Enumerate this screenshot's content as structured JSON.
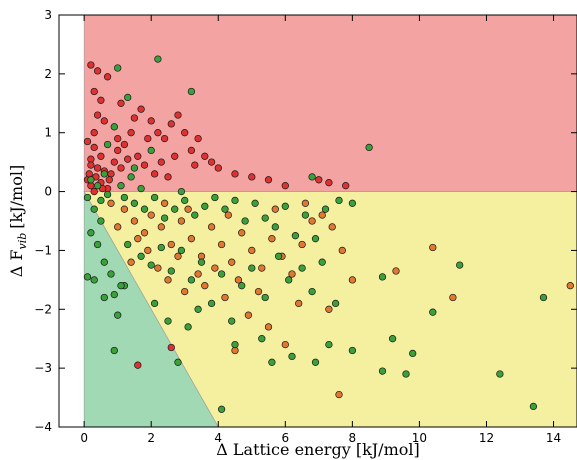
{
  "chart_data": {
    "type": "scatter",
    "title": "",
    "xlabel": "Δ Lattice energy [kJ/mol]",
    "ylabel": {
      "main": "Δ F",
      "sub": "vib",
      "unit": "[kJ/mol]"
    },
    "xlim": [
      -0.75,
      14.7
    ],
    "ylim": [
      -4,
      3
    ],
    "xticks": [
      0,
      2,
      4,
      6,
      8,
      10,
      12,
      14
    ],
    "yticks": [
      -4,
      -3,
      -2,
      -1,
      0,
      1,
      2,
      3
    ],
    "grid": false,
    "regions": [
      {
        "name": "red",
        "color": "#f4a3a3",
        "polygon": [
          [
            0,
            0
          ],
          [
            14.7,
            0
          ],
          [
            14.7,
            3
          ],
          [
            0,
            3
          ]
        ]
      },
      {
        "name": "yellow",
        "color": "#f5f0a0",
        "polygon": [
          [
            0,
            0
          ],
          [
            14.7,
            0
          ],
          [
            14.7,
            -4
          ],
          [
            4,
            -4
          ]
        ]
      },
      {
        "name": "green",
        "color": "#a0d9b4",
        "polygon": [
          [
            0,
            0
          ],
          [
            4,
            -4
          ],
          [
            0,
            -4
          ]
        ]
      }
    ],
    "series": [
      {
        "color": "#e03030",
        "points": [
          [
            0.2,
            2.15
          ],
          [
            0.4,
            2.05
          ],
          [
            0.3,
            1.7
          ],
          [
            0.5,
            1.55
          ],
          [
            0.4,
            1.3
          ],
          [
            0.6,
            1.2
          ],
          [
            0.3,
            1.0
          ],
          [
            0.1,
            0.85
          ],
          [
            0.3,
            0.75
          ],
          [
            0.5,
            0.6
          ],
          [
            0.2,
            0.55
          ],
          [
            0.4,
            0.4
          ],
          [
            0.6,
            0.35
          ],
          [
            0.8,
            0.3
          ],
          [
            0.9,
            0.5
          ],
          [
            1.0,
            0.7
          ],
          [
            1.2,
            0.8
          ],
          [
            1.4,
            1.0
          ],
          [
            1.5,
            1.25
          ],
          [
            1.7,
            1.4
          ],
          [
            2.0,
            1.2
          ],
          [
            2.2,
            1.0
          ],
          [
            2.4,
            0.9
          ],
          [
            2.6,
            1.15
          ],
          [
            2.8,
            1.3
          ],
          [
            3.0,
            1.0
          ],
          [
            3.2,
            0.7
          ],
          [
            3.4,
            0.9
          ],
          [
            3.6,
            0.6
          ],
          [
            3.8,
            0.5
          ],
          [
            4.0,
            0.4
          ],
          [
            4.5,
            0.3
          ],
          [
            5.0,
            0.25
          ],
          [
            5.5,
            0.2
          ],
          [
            6.0,
            0.1
          ],
          [
            7.0,
            0.2
          ],
          [
            7.3,
            0.15
          ],
          [
            7.8,
            0.1
          ],
          [
            1.1,
            0.4
          ],
          [
            1.3,
            0.55
          ],
          [
            1.6,
            0.6
          ],
          [
            1.8,
            0.45
          ],
          [
            2.1,
            0.3
          ],
          [
            2.3,
            0.5
          ],
          [
            2.5,
            0.25
          ],
          [
            0.1,
            0.2
          ],
          [
            0.2,
            0.1
          ],
          [
            0.3,
            0.0
          ],
          [
            0.5,
            0.15
          ],
          [
            0.7,
            0.05
          ],
          [
            1.0,
            0.9
          ],
          [
            1.1,
            1.5
          ],
          [
            0.7,
            1.95
          ],
          [
            0.2,
            0.45
          ],
          [
            0.15,
            0.3
          ],
          [
            0.35,
            0.25
          ],
          [
            0.55,
            0.05
          ],
          [
            0.75,
            0.2
          ],
          [
            1.9,
            0.9
          ],
          [
            2.7,
            0.6
          ],
          [
            3.3,
            0.45
          ],
          [
            1.6,
            -2.95
          ],
          [
            2.6,
            -2.65
          ]
        ]
      },
      {
        "color": "#e07830",
        "points": [
          [
            0.8,
            -0.2
          ],
          [
            1.2,
            -0.3
          ],
          [
            1.5,
            -0.5
          ],
          [
            1.8,
            -0.7
          ],
          [
            2.0,
            -0.4
          ],
          [
            2.3,
            -0.6
          ],
          [
            2.6,
            -0.9
          ],
          [
            2.9,
            -0.5
          ],
          [
            3.2,
            -0.8
          ],
          [
            3.5,
            -1.1
          ],
          [
            3.8,
            -0.6
          ],
          [
            4.1,
            -0.9
          ],
          [
            4.4,
            -1.2
          ],
          [
            4.7,
            -0.7
          ],
          [
            5.0,
            -1.0
          ],
          [
            5.3,
            -1.3
          ],
          [
            5.6,
            -0.8
          ],
          [
            5.9,
            -1.1
          ],
          [
            6.2,
            -1.4
          ],
          [
            6.5,
            -0.9
          ],
          [
            6.8,
            -0.5
          ],
          [
            7.1,
            -0.4
          ],
          [
            7.4,
            -0.6
          ],
          [
            7.7,
            -1.0
          ],
          [
            8.0,
            -1.5
          ],
          [
            9.3,
            -1.35
          ],
          [
            10.4,
            -0.95
          ],
          [
            11.0,
            -1.8
          ],
          [
            14.5,
            -1.6
          ],
          [
            4.9,
            -2.1
          ],
          [
            5.5,
            -2.3
          ],
          [
            6.0,
            -2.6
          ],
          [
            4.5,
            -2.7
          ],
          [
            7.6,
            -3.45
          ],
          [
            2.5,
            -1.5
          ],
          [
            3.0,
            -1.7
          ],
          [
            3.6,
            -1.6
          ],
          [
            4.2,
            -1.8
          ],
          [
            1.4,
            -1.2
          ],
          [
            1.9,
            -1.0
          ],
          [
            2.2,
            -1.3
          ],
          [
            2.8,
            -1.1
          ],
          [
            3.4,
            -1.4
          ],
          [
            3.9,
            -1.3
          ],
          [
            4.6,
            -1.5
          ],
          [
            5.2,
            -1.7
          ],
          [
            6.4,
            -1.9
          ],
          [
            7.3,
            -2.0
          ],
          [
            1.0,
            -0.6
          ],
          [
            1.6,
            -0.8
          ],
          [
            2.4,
            -0.2
          ],
          [
            3.1,
            -0.3
          ],
          [
            4.3,
            -0.4
          ],
          [
            5.7,
            -0.3
          ],
          [
            6.6,
            -0.2
          ]
        ]
      },
      {
        "color": "#3aa03a",
        "points": [
          [
            0.1,
            -0.1
          ],
          [
            0.3,
            -0.3
          ],
          [
            0.5,
            -0.5
          ],
          [
            0.2,
            -0.7
          ],
          [
            0.4,
            -0.9
          ],
          [
            0.6,
            -1.2
          ],
          [
            0.8,
            -1.4
          ],
          [
            0.3,
            -1.5
          ],
          [
            0.1,
            -1.45
          ],
          [
            0.6,
            -1.8
          ],
          [
            0.9,
            -1.75
          ],
          [
            1.2,
            -1.6
          ],
          [
            1.0,
            -2.1
          ],
          [
            1.1,
            -1.6
          ],
          [
            0.9,
            -2.7
          ],
          [
            2.8,
            -2.9
          ],
          [
            4.1,
            -3.7
          ],
          [
            4.5,
            -2.6
          ],
          [
            5.3,
            -2.5
          ],
          [
            5.6,
            -2.9
          ],
          [
            6.2,
            -2.8
          ],
          [
            6.9,
            -2.9
          ],
          [
            7.3,
            -2.6
          ],
          [
            8.0,
            -2.7
          ],
          [
            8.9,
            -3.05
          ],
          [
            9.2,
            -2.5
          ],
          [
            9.6,
            -3.1
          ],
          [
            9.8,
            -2.75
          ],
          [
            10.4,
            -2.05
          ],
          [
            12.4,
            -3.1
          ],
          [
            13.4,
            -3.65
          ],
          [
            13.7,
            -1.8
          ],
          [
            11.2,
            -1.25
          ],
          [
            8.9,
            -1.45
          ],
          [
            1.2,
            -0.1
          ],
          [
            1.5,
            -0.2
          ],
          [
            1.8,
            -0.3
          ],
          [
            2.1,
            -0.1
          ],
          [
            2.4,
            -0.45
          ],
          [
            2.7,
            -0.3
          ],
          [
            3.0,
            -0.15
          ],
          [
            3.3,
            -0.4
          ],
          [
            3.6,
            -0.25
          ],
          [
            3.9,
            -0.1
          ],
          [
            4.2,
            -0.3
          ],
          [
            4.5,
            -0.15
          ],
          [
            4.8,
            -0.5
          ],
          [
            5.1,
            -0.2
          ],
          [
            5.4,
            -0.45
          ],
          [
            5.7,
            -0.6
          ],
          [
            6.0,
            -0.25
          ],
          [
            6.3,
            -0.75
          ],
          [
            6.6,
            -0.4
          ],
          [
            6.9,
            -0.8
          ],
          [
            7.2,
            -0.3
          ],
          [
            7.6,
            -0.15
          ],
          [
            8.0,
            -0.2
          ],
          [
            1.3,
            -0.9
          ],
          [
            1.7,
            -1.1
          ],
          [
            2.0,
            -1.25
          ],
          [
            2.3,
            -0.95
          ],
          [
            2.6,
            -1.35
          ],
          [
            2.9,
            -1.0
          ],
          [
            3.2,
            -1.5
          ],
          [
            3.5,
            -1.2
          ],
          [
            3.8,
            -1.9
          ],
          [
            4.1,
            -1.4
          ],
          [
            4.4,
            -2.2
          ],
          [
            4.7,
            -1.6
          ],
          [
            5.0,
            -1.3
          ],
          [
            5.4,
            -1.8
          ],
          [
            5.8,
            -1.1
          ],
          [
            6.1,
            -1.5
          ],
          [
            6.5,
            -1.3
          ],
          [
            6.8,
            -1.7
          ],
          [
            7.1,
            -1.2
          ],
          [
            7.5,
            -1.9
          ],
          [
            3.1,
            -2.3
          ],
          [
            3.4,
            -2.0
          ],
          [
            2.1,
            -1.9
          ],
          [
            2.5,
            -2.2
          ],
          [
            0.4,
            0.1
          ],
          [
            0.6,
            0.3
          ],
          [
            0.7,
            0.8
          ],
          [
            0.9,
            1.1
          ],
          [
            1.3,
            1.6
          ],
          [
            1.0,
            2.1
          ],
          [
            2.2,
            2.25
          ],
          [
            3.2,
            1.7
          ],
          [
            8.5,
            0.75
          ],
          [
            6.8,
            0.25
          ],
          [
            1.5,
            0.4
          ],
          [
            2.0,
            0.7
          ],
          [
            0.2,
            0.2
          ],
          [
            0.5,
            -0.15
          ],
          [
            0.7,
            -0.05
          ],
          [
            1.1,
            0.1
          ],
          [
            1.4,
            0.25
          ],
          [
            1.7,
            0.05
          ],
          [
            2.9,
            0.0
          ]
        ]
      }
    ]
  }
}
